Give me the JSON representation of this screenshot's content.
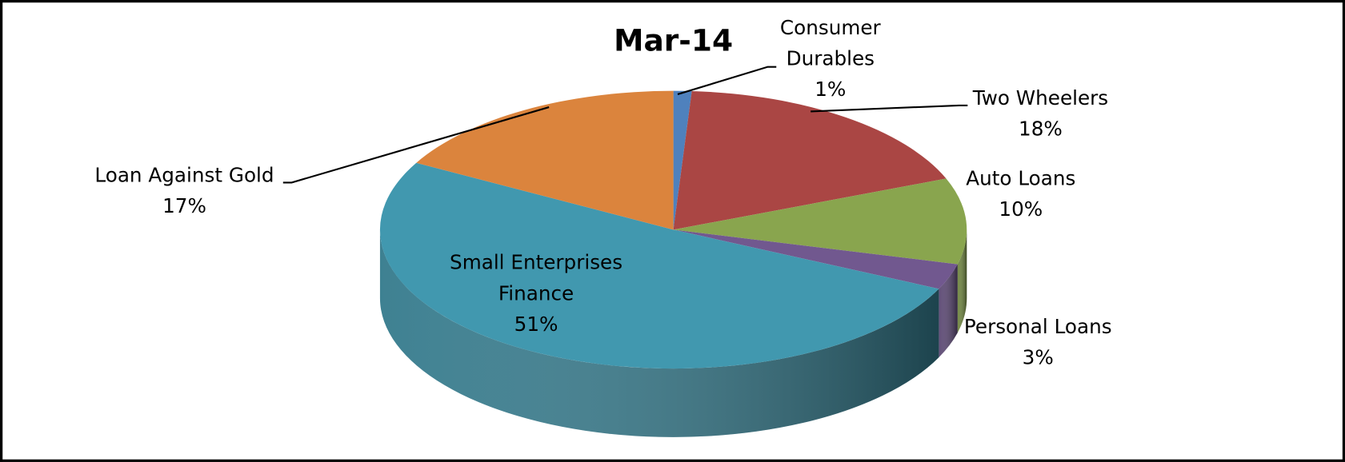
{
  "chart_data": {
    "type": "pie",
    "title": "Mar-14",
    "categories": [
      "Consumer Durables",
      "Two Wheelers",
      "Auto Loans",
      "Personal Loans",
      "Small Enterprises Finance",
      "Loan Against Gold"
    ],
    "values": [
      1,
      18,
      10,
      3,
      51,
      17
    ],
    "value_labels": [
      "1%",
      "18%",
      "10%",
      "3%",
      "51%",
      "17%"
    ],
    "colors": [
      "#4f81bd",
      "#aa4644",
      "#89a54e",
      "#71588f",
      "#4198af",
      "#db843d"
    ]
  }
}
